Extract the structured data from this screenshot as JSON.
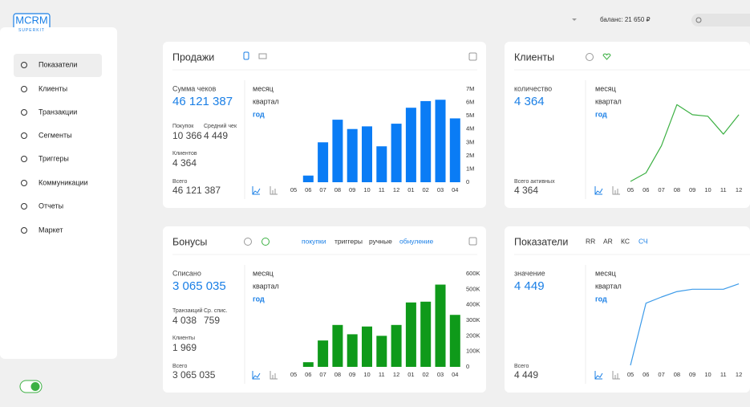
{
  "logo": {
    "title": "MCRM",
    "subtitle": "SUPERKIT"
  },
  "header": {
    "balance": "баланс: 21 650 ₽"
  },
  "nav": [
    "Показатели",
    "Клиенты",
    "Транзакции",
    "Сегменты",
    "Триггеры",
    "Коммуникации",
    "Отчеты",
    "Маркет"
  ],
  "sales": {
    "title": "Продажи",
    "main_label": "Сумма чеков",
    "main_value": "46 121 387",
    "stats": [
      {
        "label": "Покупок",
        "value": "10 366"
      },
      {
        "label": "Средний чек",
        "value": "4 449"
      }
    ],
    "clients_label": "Клиентов",
    "clients_value": "4 364",
    "total_label": "Всего",
    "total_value": "46 121 387",
    "periods": [
      "месяц",
      "квартал",
      "год"
    ],
    "chart": {
      "type": "bar",
      "color": "#0a7cf5",
      "categories": [
        "05",
        "06",
        "07",
        "08",
        "09",
        "10",
        "11",
        "12",
        "01",
        "02",
        "03",
        "04"
      ],
      "values": [
        0,
        500000,
        3000000,
        4700000,
        4000000,
        4200000,
        2700000,
        4400000,
        5600000,
        6100000,
        6200000,
        4800000
      ],
      "ylim": [
        0,
        7000000
      ],
      "yticks": [
        0,
        {
          "value": 1000000,
          "label": "1M"
        },
        {
          "value": 2000000,
          "label": "2M"
        },
        {
          "value": 3000000,
          "label": "3M"
        },
        {
          "value": 4000000,
          "label": "4M"
        },
        {
          "value": 5000000,
          "label": "5M"
        },
        {
          "value": 6000000,
          "label": "6M"
        },
        {
          "value": 7000000,
          "label": "7M"
        }
      ]
    }
  },
  "clients": {
    "title": "Клиенты",
    "main_label": "количество",
    "main_value": "4 364",
    "total_label": "Всего активных",
    "total_value": "4 364",
    "periods": [
      "месяц",
      "квартал",
      "год"
    ],
    "chart": {
      "type": "line",
      "color": "#3cb043",
      "categories": [
        "05",
        "06",
        "07",
        "08",
        "09",
        "10",
        "11",
        "12"
      ],
      "values": [
        1,
        12,
        47,
        100,
        87,
        85,
        62,
        87
      ],
      "ylim": [
        0,
        120
      ]
    }
  },
  "bonuses": {
    "title": "Бонусы",
    "tabs": [
      "покупки",
      "триггеры",
      "ручные",
      "обнуление"
    ],
    "main_label": "Списано",
    "main_value": "3 065 035",
    "stats": [
      {
        "label": "Транзакций",
        "value": "4 038"
      },
      {
        "label": "Ср. спис.",
        "value": "759"
      }
    ],
    "clients_label": "Клиенты",
    "clients_value": "1 969",
    "total_label": "Всего",
    "total_value": "3 065 035",
    "periods": [
      "месяц",
      "квартал",
      "год"
    ],
    "chart": {
      "type": "bar",
      "color": "#0f9a1a",
      "categories": [
        "05",
        "06",
        "07",
        "08",
        "09",
        "10",
        "11",
        "12",
        "01",
        "02",
        "03",
        "04"
      ],
      "values": [
        0,
        30000,
        170000,
        270000,
        210000,
        260000,
        200000,
        270000,
        415000,
        420000,
        530000,
        335000
      ],
      "ylim": [
        0,
        600000
      ],
      "yticks": [
        0,
        {
          "value": 100000,
          "label": "100K"
        },
        {
          "value": 200000,
          "label": "200K"
        },
        {
          "value": 300000,
          "label": "300K"
        },
        {
          "value": 400000,
          "label": "400K"
        },
        {
          "value": 500000,
          "label": "500K"
        },
        {
          "value": 600000,
          "label": "600K"
        }
      ]
    }
  },
  "indicators": {
    "title": "Показатели",
    "tabs": [
      "RR",
      "AR",
      "КС",
      "СЧ"
    ],
    "main_label": "значение",
    "main_value": "4 449",
    "total_label": "Всего",
    "total_value": "4 449",
    "periods": [
      "месяц",
      "квартал",
      "год"
    ],
    "chart": {
      "type": "line",
      "color": "#3d9be9",
      "categories": [
        "05",
        "06",
        "07",
        "08",
        "09",
        "10",
        "11",
        "12"
      ],
      "values": [
        2,
        82,
        90,
        97,
        100,
        100,
        100,
        107
      ],
      "ylim": [
        0,
        120
      ]
    }
  }
}
